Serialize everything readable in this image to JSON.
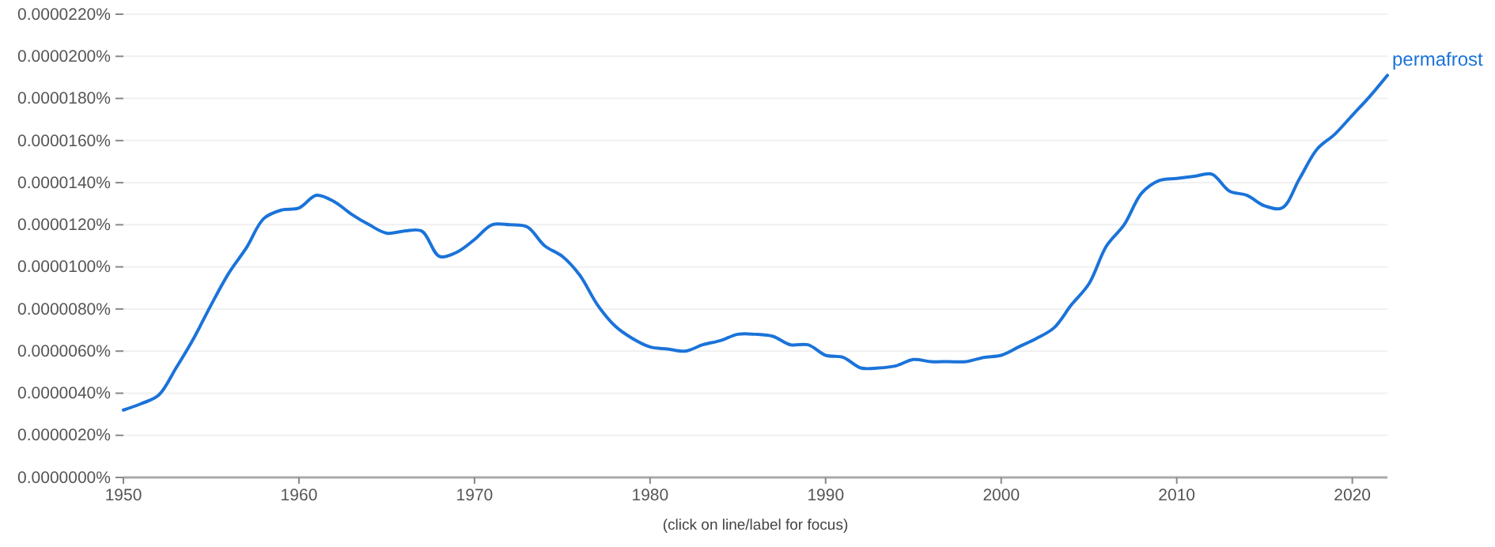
{
  "chart_data": {
    "type": "line",
    "x": [
      1950,
      1951,
      1952,
      1953,
      1954,
      1955,
      1956,
      1957,
      1958,
      1959,
      1960,
      1961,
      1962,
      1963,
      1964,
      1965,
      1966,
      1967,
      1968,
      1969,
      1970,
      1971,
      1972,
      1973,
      1974,
      1975,
      1976,
      1977,
      1978,
      1979,
      1980,
      1981,
      1982,
      1983,
      1984,
      1985,
      1986,
      1987,
      1988,
      1989,
      1990,
      1991,
      1992,
      1993,
      1994,
      1995,
      1996,
      1997,
      1998,
      1999,
      2000,
      2001,
      2002,
      2003,
      2004,
      2005,
      2006,
      2007,
      2008,
      2009,
      2010,
      2011,
      2012,
      2013,
      2014,
      2015,
      2016,
      2017,
      2018,
      2019,
      2020,
      2021,
      2022
    ],
    "series": [
      {
        "name": "permafrost",
        "color": "#1a73d9",
        "values": [
          3.2e-06,
          3.5e-06,
          3.9e-06,
          5.2e-06,
          6.6e-06,
          8.2e-06,
          9.7e-06,
          1.09e-05,
          1.23e-05,
          1.27e-05,
          1.28e-05,
          1.34e-05,
          1.31e-05,
          1.25e-05,
          1.2e-05,
          1.16e-05,
          1.17e-05,
          1.17e-05,
          1.05e-05,
          1.07e-05,
          1.13e-05,
          1.2e-05,
          1.2e-05,
          1.19e-05,
          1.1e-05,
          1.05e-05,
          9.6e-06,
          8.2e-06,
          7.2e-06,
          6.6e-06,
          6.2e-06,
          6.1e-06,
          6e-06,
          6.3e-06,
          6.5e-06,
          6.8e-06,
          6.8e-06,
          6.7e-06,
          6.3e-06,
          6.3e-06,
          5.8e-06,
          5.7e-06,
          5.2e-06,
          5.2e-06,
          5.3e-06,
          5.6e-06,
          5.5e-06,
          5.5e-06,
          5.5e-06,
          5.7e-06,
          5.8e-06,
          6.2e-06,
          6.6e-06,
          7.1e-06,
          8.2e-06,
          9.2e-06,
          1.1e-05,
          1.2e-05,
          1.35e-05,
          1.41e-05,
          1.42e-05,
          1.43e-05,
          1.44e-05,
          1.36e-05,
          1.34e-05,
          1.29e-05,
          1.28e-05,
          1.42e-05,
          1.56e-05,
          1.63e-05,
          1.72e-05,
          1.81e-05,
          1.91e-05
        ]
      }
    ],
    "xlim": [
      1950,
      2022
    ],
    "xticks": [
      1950,
      1960,
      1970,
      1980,
      1990,
      2000,
      2010,
      2020
    ],
    "ylim": [
      0,
      2.2e-05
    ],
    "yticks": [
      {
        "value": 0,
        "label": "0.0000000%"
      },
      {
        "value": 2e-06,
        "label": "0.0000020%"
      },
      {
        "value": 4e-06,
        "label": "0.0000040%"
      },
      {
        "value": 6e-06,
        "label": "0.0000060%"
      },
      {
        "value": 8e-06,
        "label": "0.0000080%"
      },
      {
        "value": 1e-05,
        "label": "0.0000100%"
      },
      {
        "value": 1.2e-05,
        "label": "0.0000120%"
      },
      {
        "value": 1.4e-05,
        "label": "0.0000140%"
      },
      {
        "value": 1.6e-05,
        "label": "0.0000160%"
      },
      {
        "value": 1.8e-05,
        "label": "0.0000180%"
      },
      {
        "value": 2e-05,
        "label": "0.0000200%"
      },
      {
        "value": 2.2e-05,
        "label": "0.0000220%"
      }
    ],
    "grid": "y",
    "marker": "none",
    "line_style": "solid",
    "annotations": [
      "(click on line/label for focus)"
    ]
  }
}
